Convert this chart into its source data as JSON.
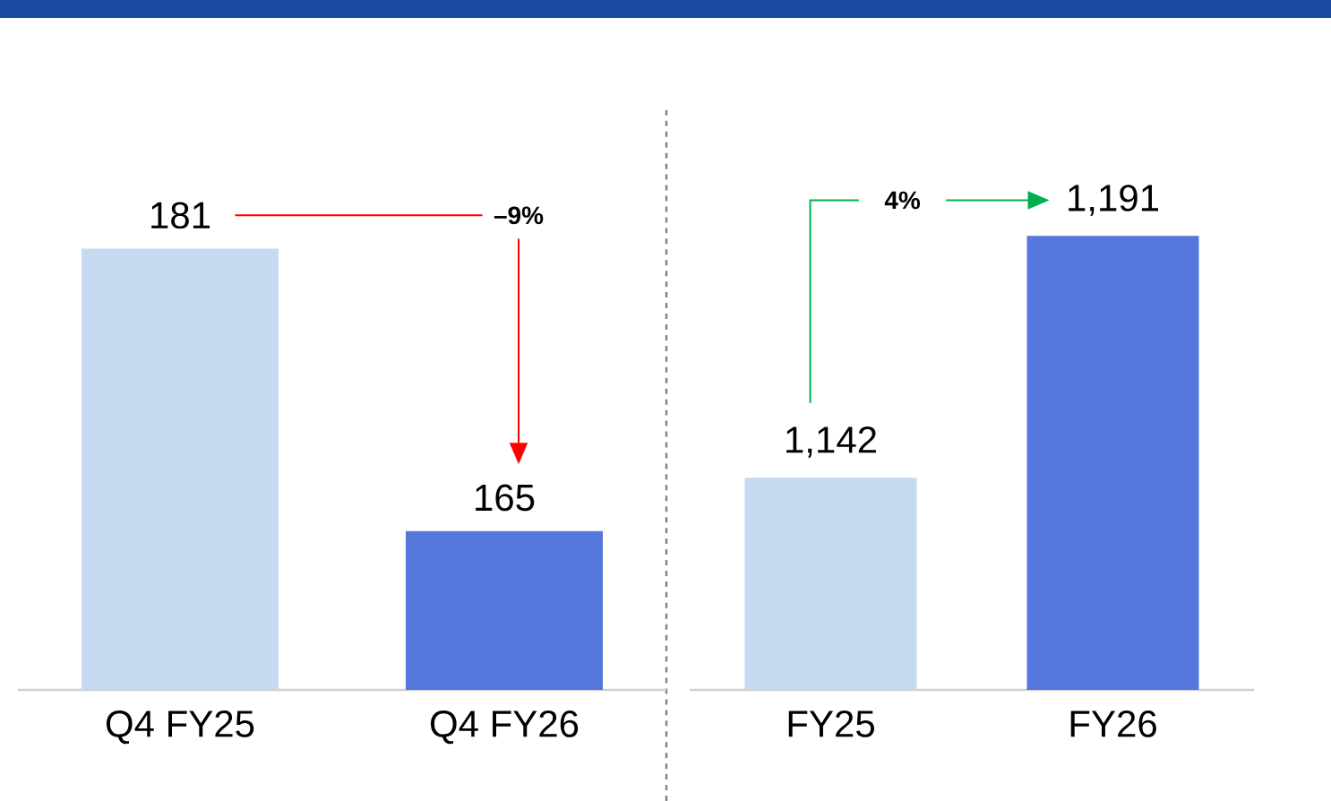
{
  "chart_data": [
    {
      "type": "bar",
      "categories": [
        "Q4 FY25",
        "Q4 FY26"
      ],
      "values": [
        181,
        165
      ],
      "colors": [
        "#c6d9f0",
        "#5677db"
      ],
      "ylim": [
        156,
        189
      ],
      "tick_labels": "x",
      "value_labels": [
        "181",
        "165"
      ],
      "annotations": [
        "–9%"
      ]
    },
    {
      "type": "bar",
      "categories": [
        "FY25",
        "FY26"
      ],
      "values": [
        1142,
        1191
      ],
      "colors": [
        "#c6d9f0",
        "#5677db"
      ],
      "ylim": [
        1099,
        1217
      ],
      "tick_labels": "x",
      "value_labels": [
        "1,142",
        "1,191"
      ],
      "annotations": [
        "4%"
      ]
    }
  ]
}
